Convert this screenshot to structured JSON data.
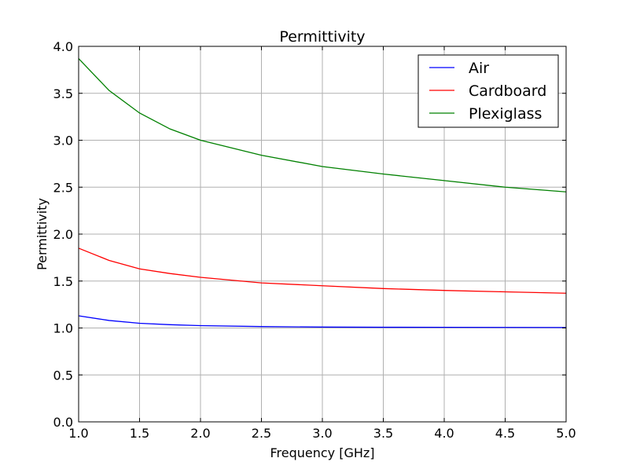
{
  "chart_data": {
    "type": "line",
    "title": "Permittivity",
    "xlabel": "Frequency [GHz]",
    "ylabel": "Permittivity",
    "xlim": [
      1.0,
      5.0
    ],
    "ylim": [
      0.0,
      4.0
    ],
    "x_ticks": [
      "1.0",
      "1.5",
      "2.0",
      "2.5",
      "3.0",
      "3.5",
      "4.0",
      "4.5",
      "5.0"
    ],
    "y_ticks": [
      "0.0",
      "0.5",
      "1.0",
      "1.5",
      "2.0",
      "2.5",
      "3.0",
      "3.5",
      "4.0"
    ],
    "grid": true,
    "legend_position": "top-right",
    "x": [
      1.0,
      1.25,
      1.5,
      1.75,
      2.0,
      2.5,
      3.0,
      3.5,
      4.0,
      4.5,
      5.0
    ],
    "series": [
      {
        "name": "Air",
        "color": "#0000ff",
        "values": [
          1.13,
          1.08,
          1.05,
          1.035,
          1.025,
          1.015,
          1.01,
          1.008,
          1.007,
          1.006,
          1.005
        ]
      },
      {
        "name": "Cardboard",
        "color": "#ff0000",
        "values": [
          1.85,
          1.72,
          1.63,
          1.58,
          1.54,
          1.48,
          1.45,
          1.42,
          1.4,
          1.385,
          1.37
        ]
      },
      {
        "name": "Plexiglass",
        "color": "#008000",
        "values": [
          3.87,
          3.53,
          3.29,
          3.12,
          3.0,
          2.84,
          2.72,
          2.64,
          2.57,
          2.5,
          2.45
        ]
      }
    ]
  }
}
